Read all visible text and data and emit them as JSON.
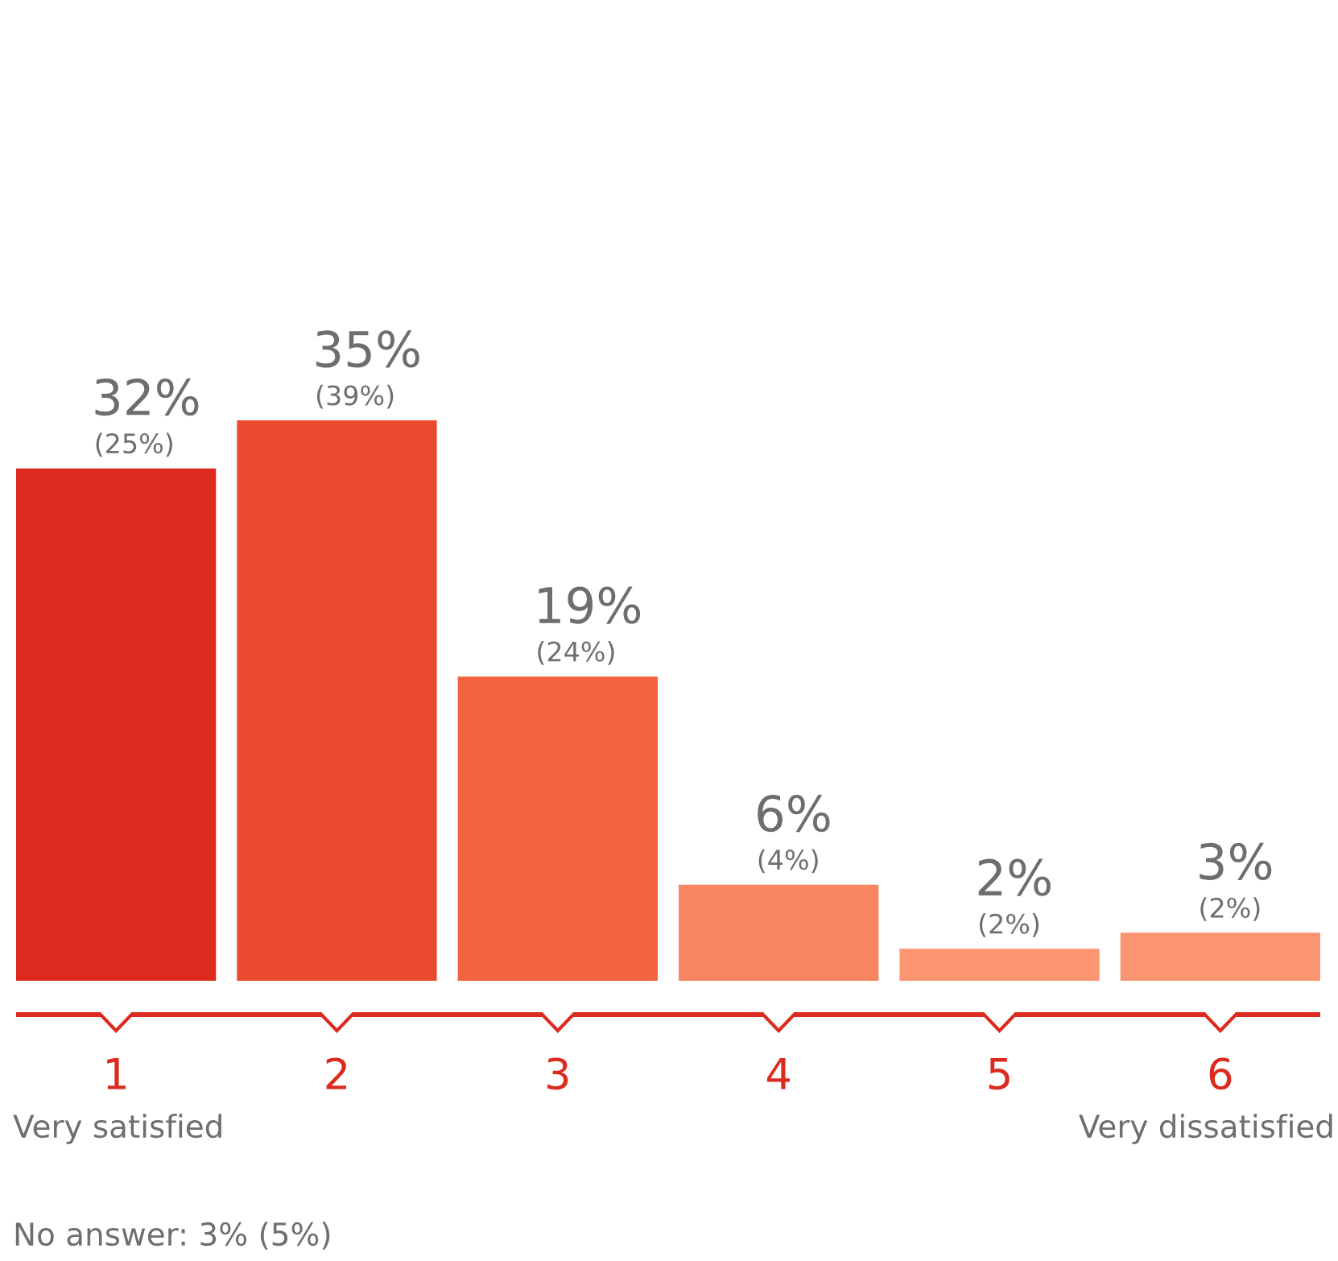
{
  "chart_data": {
    "type": "bar",
    "categories": [
      "1",
      "2",
      "3",
      "4",
      "5",
      "6"
    ],
    "values": [
      32,
      35,
      19,
      6,
      2,
      3
    ],
    "colors": [
      "#dc2a1e",
      "#ea4a2e",
      "#f5623f",
      "#f8855f",
      "#fb9470",
      "#fb9470"
    ],
    "value_labels": [
      "32%\n(25%)",
      "35%\n(39%)",
      "19%\n(24%)",
      "6%\n(4%)",
      "2%\n(2%)",
      "3%\n(2%)"
    ],
    "annotations": [
      "Very satisfied",
      "Very dissatisfied",
      "No answer: 3% (5%)"
    ]
  }
}
